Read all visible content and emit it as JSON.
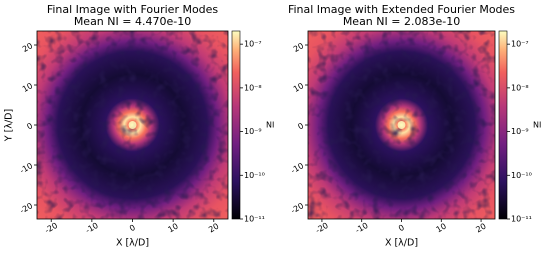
{
  "chart_data": [
    {
      "type": "heatmap",
      "title": "Final Image with Fourier Modes",
      "subtitle": "Mean NI = 4.470e-10",
      "xlabel": "X [λ/D]",
      "ylabel": "Y [λ/D]",
      "xlim": [
        -23.5,
        23.5
      ],
      "ylim": [
        -23.5,
        23.5
      ],
      "xticks": [
        -20,
        -10,
        0,
        10,
        20
      ],
      "yticks": [
        -20,
        -10,
        0,
        10,
        20
      ],
      "colorbar": {
        "label": "NI",
        "log_scale": true,
        "lim": [
          1e-11,
          2e-07
        ],
        "colormap": "magma",
        "ticks": [
          {
            "value": 1e-11,
            "label": "10⁻¹¹"
          },
          {
            "value": 1e-10,
            "label": "10⁻¹⁰"
          },
          {
            "value": 1e-09,
            "label": "10⁻⁹"
          },
          {
            "value": 1e-08,
            "label": "10⁻⁸"
          },
          {
            "value": 1e-07,
            "label": "10⁻⁷"
          }
        ]
      }
    },
    {
      "type": "heatmap",
      "title": "Final Image with Extended Fourier Modes",
      "subtitle": "Mean NI = 2.083e-10",
      "xlabel": "X [λ/D]",
      "xlim": [
        -23.5,
        23.5
      ],
      "ylim": [
        -23.5,
        23.5
      ],
      "xticks": [
        -20,
        -10,
        0,
        10,
        20
      ],
      "yticks": [
        -20,
        -10,
        0,
        10,
        20
      ],
      "colorbar": {
        "label": "NI",
        "log_scale": true,
        "lim": [
          1e-11,
          2e-07
        ],
        "colormap": "magma",
        "ticks": [
          {
            "value": 1e-11,
            "label": "10⁻¹¹"
          },
          {
            "value": 1e-10,
            "label": "10⁻¹⁰"
          },
          {
            "value": 1e-09,
            "label": "10⁻⁹"
          },
          {
            "value": 1e-08,
            "label": "10⁻⁸"
          },
          {
            "value": 1e-07,
            "label": "10⁻⁷"
          }
        ]
      }
    }
  ]
}
